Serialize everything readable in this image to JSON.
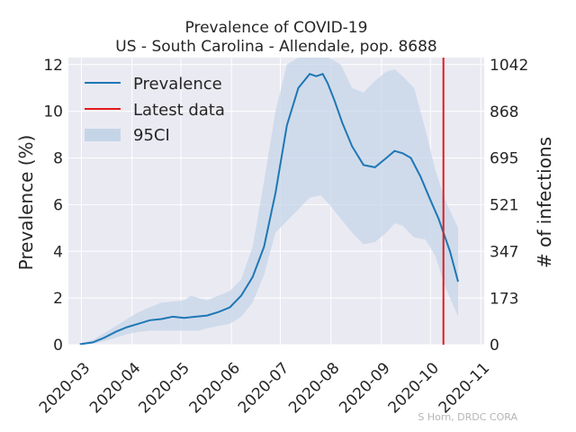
{
  "chart_data": {
    "type": "line",
    "title": "Prevalence of COVID-19",
    "subtitle": "US - South Carolina - Allendale, pop. 8688",
    "ylabel": "Prevalence (%)",
    "ylabel_right": "# of infections",
    "xlabel": "",
    "credit": "S Horn, DRDC CORA",
    "xlim": [
      "2020-02-22",
      "2020-11-03"
    ],
    "ylim": [
      0,
      12.3
    ],
    "y2lim": [
      0,
      1069
    ],
    "x_ticks": [
      "2020-03",
      "2020-04",
      "2020-05",
      "2020-06",
      "2020-07",
      "2020-08",
      "2020-09",
      "2020-10",
      "2020-11"
    ],
    "y_ticks": [
      "0",
      "2",
      "4",
      "6",
      "8",
      "10",
      "12"
    ],
    "y_ticks_values": [
      0,
      2,
      4,
      6,
      8,
      10,
      12
    ],
    "y2_ticks": [
      "0",
      "173",
      "347",
      "521",
      "695",
      "868",
      "1042"
    ],
    "y2_ticks_values": [
      0,
      173,
      347,
      521,
      695,
      868,
      1042
    ],
    "grid": true,
    "legend_position": "top-left",
    "legend": [
      {
        "name": "Prevalence",
        "kind": "line",
        "color": "#1f77b4"
      },
      {
        "name": "Latest data",
        "kind": "line",
        "color": "#e41a1c"
      },
      {
        "name": "95CI",
        "kind": "band",
        "color": "#c5d5e8"
      }
    ],
    "latest_data_date": "2020-10-09",
    "series": [
      {
        "name": "Prevalence",
        "color": "#1f77b4",
        "x": [
          "2020-02-29",
          "2020-03-08",
          "2020-03-15",
          "2020-03-22",
          "2020-03-29",
          "2020-04-05",
          "2020-04-12",
          "2020-04-19",
          "2020-04-26",
          "2020-05-03",
          "2020-05-10",
          "2020-05-17",
          "2020-05-24",
          "2020-05-31",
          "2020-06-07",
          "2020-06-14",
          "2020-06-21",
          "2020-06-28",
          "2020-07-05",
          "2020-07-12",
          "2020-07-19",
          "2020-07-23",
          "2020-07-27",
          "2020-07-30",
          "2020-08-03",
          "2020-08-08",
          "2020-08-14",
          "2020-08-21",
          "2020-08-28",
          "2020-09-04",
          "2020-09-09",
          "2020-09-14",
          "2020-09-19",
          "2020-09-25",
          "2020-10-01",
          "2020-10-06",
          "2020-10-09",
          "2020-10-13",
          "2020-10-18"
        ],
        "y": [
          0.02,
          0.1,
          0.3,
          0.55,
          0.75,
          0.9,
          1.05,
          1.1,
          1.2,
          1.15,
          1.2,
          1.25,
          1.4,
          1.6,
          2.1,
          2.9,
          4.2,
          6.5,
          9.4,
          11.0,
          11.6,
          11.5,
          11.6,
          11.2,
          10.5,
          9.5,
          8.5,
          7.7,
          7.6,
          8.0,
          8.3,
          8.2,
          8.0,
          7.2,
          6.2,
          5.4,
          4.8,
          4.0,
          2.7
        ]
      }
    ],
    "ci_band": {
      "name": "95CI",
      "x": [
        "2020-02-29",
        "2020-03-08",
        "2020-03-15",
        "2020-03-22",
        "2020-03-29",
        "2020-04-05",
        "2020-04-12",
        "2020-04-19",
        "2020-04-26",
        "2020-05-03",
        "2020-05-07",
        "2020-05-12",
        "2020-05-17",
        "2020-05-24",
        "2020-05-31",
        "2020-06-07",
        "2020-06-14",
        "2020-06-21",
        "2020-06-28",
        "2020-07-05",
        "2020-07-12",
        "2020-07-19",
        "2020-07-26",
        "2020-07-31",
        "2020-08-07",
        "2020-08-14",
        "2020-08-21",
        "2020-08-28",
        "2020-09-04",
        "2020-09-09",
        "2020-09-14",
        "2020-09-21",
        "2020-09-28",
        "2020-10-04",
        "2020-10-10",
        "2020-10-18"
      ],
      "lower": [
        0.0,
        0.05,
        0.15,
        0.3,
        0.45,
        0.55,
        0.6,
        0.6,
        0.6,
        0.6,
        0.6,
        0.6,
        0.7,
        0.8,
        0.9,
        1.2,
        1.8,
        3.0,
        4.8,
        5.3,
        5.8,
        6.3,
        6.4,
        6.0,
        5.4,
        4.8,
        4.3,
        4.4,
        4.8,
        5.2,
        5.1,
        4.6,
        4.5,
        3.8,
        2.5,
        1.2
      ],
      "upper": [
        0.05,
        0.2,
        0.5,
        0.8,
        1.1,
        1.4,
        1.6,
        1.8,
        1.85,
        1.9,
        2.1,
        2.0,
        1.9,
        2.1,
        2.3,
        2.8,
        4.2,
        7.0,
        10.0,
        12.0,
        12.3,
        12.3,
        12.3,
        12.3,
        12.0,
        11.0,
        10.8,
        11.3,
        11.7,
        11.8,
        11.5,
        11.0,
        9.2,
        7.5,
        6.2,
        5.0
      ]
    }
  }
}
